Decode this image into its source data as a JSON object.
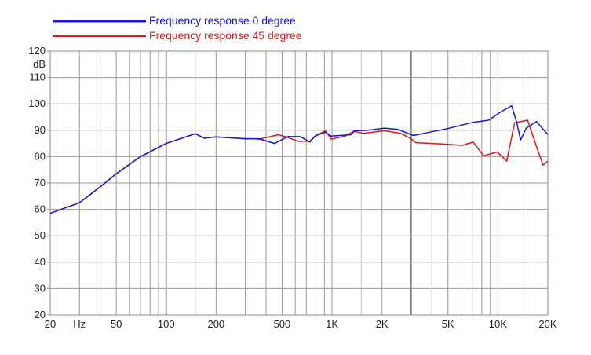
{
  "chart_data": {
    "type": "line",
    "title": "",
    "xlabel": "",
    "ylabel": "dB",
    "x_scale": "log",
    "xlim": [
      20,
      20000
    ],
    "ylim": [
      20,
      120
    ],
    "grid": true,
    "legend_position": "top-left",
    "x_tick_labels": [
      {
        "value": 20,
        "label": "20"
      },
      {
        "value": 30,
        "label": "Hz"
      },
      {
        "value": 50,
        "label": "50"
      },
      {
        "value": 100,
        "label": "100"
      },
      {
        "value": 200,
        "label": "200"
      },
      {
        "value": 500,
        "label": "500"
      },
      {
        "value": 1000,
        "label": "1K"
      },
      {
        "value": 2000,
        "label": "2K"
      },
      {
        "value": 5000,
        "label": "5K"
      },
      {
        "value": 10000,
        "label": "10K"
      },
      {
        "value": 20000,
        "label": "20K"
      }
    ],
    "y_ticks": [
      20,
      30,
      40,
      50,
      60,
      70,
      80,
      90,
      100,
      110,
      120
    ],
    "series": [
      {
        "name": "Frequency response 0 degree",
        "color": "#1515d6",
        "points": [
          [
            20,
            58.5
          ],
          [
            30,
            62.5
          ],
          [
            40,
            68.5
          ],
          [
            50,
            73.5
          ],
          [
            70,
            80
          ],
          [
            100,
            85
          ],
          [
            150,
            88.7
          ],
          [
            170,
            87
          ],
          [
            200,
            87.5
          ],
          [
            300,
            86.8
          ],
          [
            363,
            86.8
          ],
          [
            451,
            85
          ],
          [
            540,
            87.6
          ],
          [
            644,
            87.6
          ],
          [
            734,
            85.5
          ],
          [
            790,
            87.8
          ],
          [
            912,
            89.3
          ],
          [
            985,
            87.8
          ],
          [
            1300,
            88.3
          ],
          [
            1370,
            89.8
          ],
          [
            1660,
            90
          ],
          [
            2070,
            90.8
          ],
          [
            2500,
            90.3
          ],
          [
            3100,
            88
          ],
          [
            3690,
            89
          ],
          [
            4950,
            90.6
          ],
          [
            7100,
            93
          ],
          [
            8800,
            93.8
          ],
          [
            10300,
            96.8
          ],
          [
            12100,
            99.3
          ],
          [
            13000,
            92.8
          ],
          [
            13700,
            86.3
          ],
          [
            14800,
            90.8
          ],
          [
            17100,
            93.3
          ],
          [
            19800,
            88.6
          ],
          [
            20000,
            88.6
          ]
        ]
      },
      {
        "name": "Frequency response 45 degree",
        "color": "#e01818",
        "points": [
          [
            20,
            58.5
          ],
          [
            30,
            62.5
          ],
          [
            40,
            68.5
          ],
          [
            50,
            73.5
          ],
          [
            70,
            80
          ],
          [
            100,
            85
          ],
          [
            150,
            88.7
          ],
          [
            170,
            87
          ],
          [
            200,
            87.5
          ],
          [
            300,
            86.8
          ],
          [
            340,
            86.8
          ],
          [
            363,
            86.6
          ],
          [
            475,
            88.3
          ],
          [
            540,
            87.3
          ],
          [
            627,
            85.8
          ],
          [
            734,
            85.8
          ],
          [
            790,
            87.8
          ],
          [
            912,
            89.8
          ],
          [
            990,
            86.6
          ],
          [
            1200,
            87.8
          ],
          [
            1350,
            89.6
          ],
          [
            1550,
            88.8
          ],
          [
            2070,
            89.8
          ],
          [
            2600,
            88.8
          ],
          [
            3000,
            86.8
          ],
          [
            3200,
            85.3
          ],
          [
            4600,
            84.8
          ],
          [
            6100,
            84.3
          ],
          [
            7100,
            85.5
          ],
          [
            8200,
            80.3
          ],
          [
            9900,
            81.8
          ],
          [
            11300,
            78.3
          ],
          [
            12600,
            92.8
          ],
          [
            15100,
            93.8
          ],
          [
            17100,
            83.8
          ],
          [
            18700,
            76.8
          ],
          [
            20000,
            78.3
          ]
        ]
      }
    ]
  }
}
